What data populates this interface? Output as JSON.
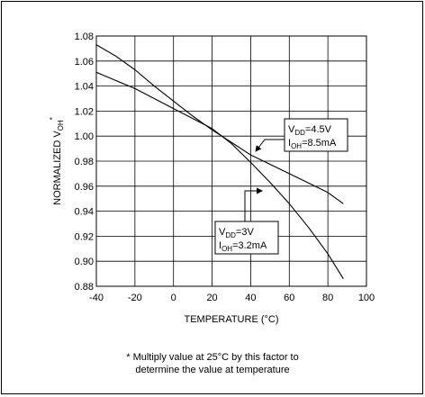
{
  "chart_data": {
    "type": "line",
    "xlabel": "TEMPERATURE (°C)",
    "ylabel": {
      "main": "NORMALIZED V",
      "sub": "OH",
      "sup": "*"
    },
    "xlim": [
      -40,
      100
    ],
    "ylim": [
      0.88,
      1.08
    ],
    "x_ticks": [
      -40,
      -20,
      0,
      20,
      40,
      60,
      80,
      100
    ],
    "y_ticks": [
      0.88,
      0.9,
      0.92,
      0.94,
      0.96,
      0.98,
      1.0,
      1.02,
      1.04,
      1.06,
      1.08
    ],
    "x_tick_labels": [
      "-40",
      "-20",
      "0",
      "20",
      "40",
      "60",
      "80",
      "100"
    ],
    "y_tick_labels": [
      "0.88",
      "0.90",
      "0.92",
      "0.94",
      "0.96",
      "0.98",
      "1.00",
      "1.02",
      "1.04",
      "1.06",
      "1.08"
    ],
    "grid": true,
    "series": [
      {
        "annotation": [
          {
            "main": "V",
            "sub": "DD",
            "tail": "=4.5V"
          },
          {
            "main": "I",
            "sub": "OH",
            "tail": "=8.5mA"
          }
        ],
        "x": [
          -40,
          -20,
          0,
          20,
          25,
          40,
          60,
          80,
          88
        ],
        "y": [
          1.051,
          1.038,
          1.022,
          1.006,
          1.0,
          0.985,
          0.97,
          0.955,
          0.946
        ]
      },
      {
        "annotation": [
          {
            "main": "V",
            "sub": "DD",
            "tail": "=3V"
          },
          {
            "main": "I",
            "sub": "OH",
            "tail": "=3.2mA"
          }
        ],
        "x": [
          -40,
          -30,
          -20,
          -10,
          0,
          10,
          20,
          25,
          30,
          40,
          50,
          60,
          70,
          80,
          88
        ],
        "y": [
          1.073,
          1.064,
          1.053,
          1.04,
          1.028,
          1.016,
          1.005,
          1.0,
          0.994,
          0.979,
          0.963,
          0.946,
          0.927,
          0.906,
          0.886
        ]
      }
    ]
  },
  "footnote": {
    "line1": "* Multiply value at 25°C by this factor to",
    "line2": "determine the value at temperature"
  }
}
